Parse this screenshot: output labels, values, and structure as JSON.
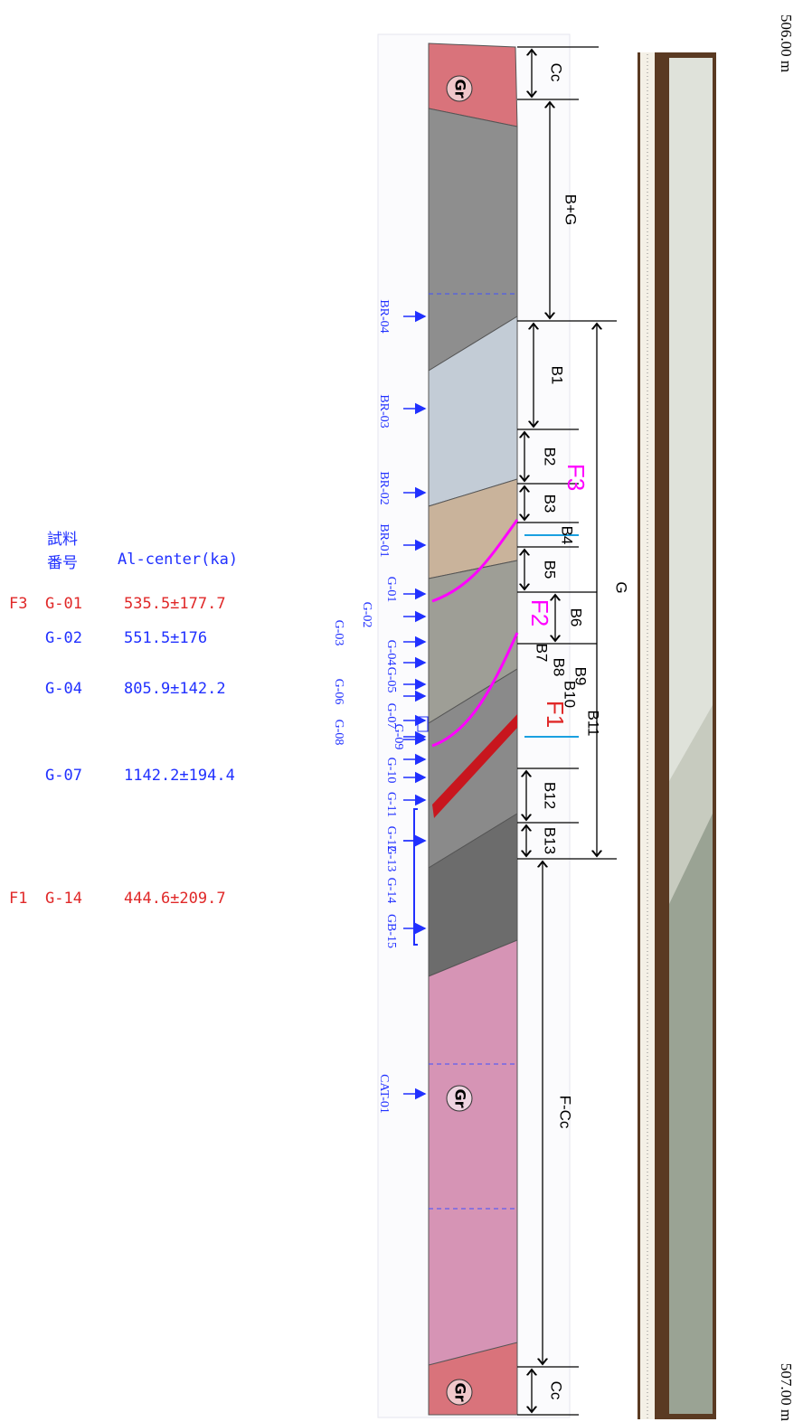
{
  "table": {
    "header": {
      "sample": "試料\n番号",
      "age": "Al-center(ka)"
    },
    "rows": [
      {
        "fault": "F3",
        "sample": "G-01",
        "age": "535.5±177.7"
      },
      {
        "sample": "G-02",
        "age": "551.5±176"
      },
      {
        "sample": "G-04",
        "age": "805.9±142.2"
      },
      {
        "sample": "G-07",
        "age": "1142.2±194.4"
      },
      {
        "fault": "F1",
        "sample": "G-14",
        "age": "444.6±209.7"
      }
    ]
  },
  "samples": [
    "BR-04",
    "BR-03",
    "BR-02",
    "BR-01",
    "G-01",
    "G-02",
    "G-03",
    "G-04",
    "G-05",
    "G-06",
    "G-07",
    "G-08",
    "G-09",
    "G-10",
    "G-11",
    "G-12",
    "G-13",
    "G-14",
    "GB-15",
    "CAT-01"
  ],
  "rocks": [
    "Gr",
    "Gr",
    "Gr"
  ],
  "units": [
    "Cc",
    "B+G",
    "B1",
    "B2",
    "B3",
    "B4",
    "B5",
    "B6",
    "B7",
    "B8",
    "B9",
    "B10",
    "B11",
    "B12",
    "B13",
    "G",
    "F-Cc",
    "Cc"
  ],
  "faults": [
    "F3",
    "F2",
    "F1"
  ],
  "depth": {
    "top": "506.00 m",
    "bottom": "507.00 m"
  }
}
